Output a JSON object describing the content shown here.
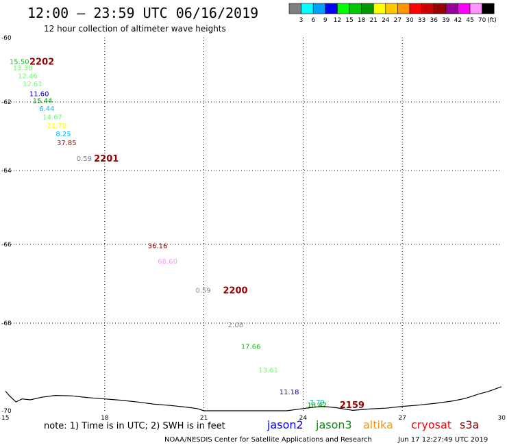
{
  "header": {
    "title": "12:00 – 23:59 UTC 06/16/2019",
    "subtitle": "12 hour collection of altimeter wave heights"
  },
  "legend": {
    "unit": "(ft)",
    "bins": [
      {
        "label": "",
        "color": "#808080"
      },
      {
        "label": "3",
        "color": "#00ffff"
      },
      {
        "label": "6",
        "color": "#00a0ff"
      },
      {
        "label": "9",
        "color": "#0000ff"
      },
      {
        "label": "12",
        "color": "#00ff00"
      },
      {
        "label": "15",
        "color": "#00c800"
      },
      {
        "label": "18",
        "color": "#009600"
      },
      {
        "label": "21",
        "color": "#ffff00"
      },
      {
        "label": "24",
        "color": "#ffc800"
      },
      {
        "label": "27",
        "color": "#ff9600"
      },
      {
        "label": "30",
        "color": "#ff0000"
      },
      {
        "label": "33",
        "color": "#c80000"
      },
      {
        "label": "36",
        "color": "#960000"
      },
      {
        "label": "39",
        "color": "#960096"
      },
      {
        "label": "42",
        "color": "#ff00ff"
      },
      {
        "label": "45",
        "color": "#ff96ff"
      },
      {
        "label": "70",
        "color": "#000000"
      }
    ]
  },
  "axes": {
    "lon_ticks": [
      "15",
      "18",
      "21",
      "24",
      "27",
      "30"
    ],
    "lat_ticks": [
      "-60",
      "-62",
      "-64",
      "-66",
      "-68",
      "-70"
    ]
  },
  "observations": [
    {
      "value": "15.50",
      "color": "#00c800",
      "lon": 15.42,
      "lat": -60.73
    },
    {
      "value": "13.38",
      "color": "#64ff64",
      "lon": 15.52,
      "lat": -60.93
    },
    {
      "value": "12.46",
      "color": "#64ff64",
      "lon": 15.67,
      "lat": -61.18
    },
    {
      "value": "12.61",
      "color": "#64ff64",
      "lon": 15.82,
      "lat": -61.43
    },
    {
      "value": "11.60",
      "color": "#0000c8",
      "lon": 16.02,
      "lat": -61.73
    },
    {
      "value": "15.44",
      "color": "#009600",
      "lon": 16.12,
      "lat": -61.95
    },
    {
      "value": "6.44",
      "color": "#00b4ff",
      "lon": 16.25,
      "lat": -62.18
    },
    {
      "value": "14.67",
      "color": "#64ff64",
      "lon": 16.42,
      "lat": -62.43
    },
    {
      "value": "21.70",
      "color": "#ffff00",
      "lon": 16.55,
      "lat": -62.68
    },
    {
      "value": "8.25",
      "color": "#00b4ff",
      "lon": 16.75,
      "lat": -62.92
    },
    {
      "value": "37.85",
      "color": "#960000",
      "lon": 16.85,
      "lat": -63.18
    },
    {
      "value": "0.59",
      "color": "#808080",
      "lon": 17.38,
      "lat": -63.64
    },
    {
      "value": "36.16",
      "color": "#960000",
      "lon": 19.6,
      "lat": -66.03
    },
    {
      "value": "68.60",
      "color": "#ff96ff",
      "lon": 19.9,
      "lat": -66.42
    },
    {
      "value": "0.59",
      "color": "#808080",
      "lon": 20.98,
      "lat": -67.16
    },
    {
      "value": "2.08",
      "color": "#808080",
      "lon": 21.96,
      "lat": -68.03
    },
    {
      "value": "17.66",
      "color": "#00c800",
      "lon": 22.42,
      "lat": -68.52
    },
    {
      "value": "13.61",
      "color": "#64ff64",
      "lon": 22.95,
      "lat": -69.06
    },
    {
      "value": "11.18",
      "color": "#0000c8",
      "lon": 23.58,
      "lat": -69.56
    },
    {
      "value": "7.79",
      "color": "#00b4b4",
      "lon": 24.42,
      "lat": -69.8
    },
    {
      "value": "18.42",
      "color": "#009600",
      "lon": 24.42,
      "lat": -69.86
    }
  ],
  "time_labels": [
    {
      "label": "2202",
      "lon": 16.1,
      "lat": -60.73
    },
    {
      "label": "2201",
      "lon": 18.05,
      "lat": -63.64
    },
    {
      "label": "2200",
      "lon": 21.95,
      "lat": -67.16
    },
    {
      "label": "2159",
      "lon": 25.48,
      "lat": -69.86
    }
  ],
  "coastline": [
    [
      15.0,
      -69.55
    ],
    [
      15.12,
      -69.66
    ],
    [
      15.32,
      -69.8
    ],
    [
      15.5,
      -69.73
    ],
    [
      15.75,
      -69.75
    ],
    [
      16.1,
      -69.69
    ],
    [
      16.5,
      -69.65
    ],
    [
      17.0,
      -69.66
    ],
    [
      17.5,
      -69.7
    ],
    [
      18.0,
      -69.73
    ],
    [
      18.5,
      -69.76
    ],
    [
      19.0,
      -69.8
    ],
    [
      19.5,
      -69.85
    ],
    [
      20.0,
      -69.88
    ],
    [
      20.5,
      -69.92
    ],
    [
      20.8,
      -69.95
    ],
    [
      21.0,
      -70.0
    ],
    [
      22.5,
      -70.0
    ],
    [
      23.0,
      -70.0
    ],
    [
      23.5,
      -70.0
    ],
    [
      24.0,
      -69.95
    ],
    [
      24.3,
      -69.92
    ],
    [
      24.6,
      -69.9
    ],
    [
      25.0,
      -69.93
    ],
    [
      25.5,
      -69.99
    ],
    [
      26.0,
      -69.96
    ],
    [
      26.5,
      -69.94
    ],
    [
      27.0,
      -69.9
    ],
    [
      27.5,
      -69.87
    ],
    [
      28.0,
      -69.83
    ],
    [
      28.5,
      -69.78
    ],
    [
      28.9,
      -69.72
    ],
    [
      29.3,
      -69.62
    ],
    [
      29.6,
      -69.56
    ],
    [
      30.0,
      -69.45
    ]
  ],
  "satellites": [
    {
      "name": "jason2",
      "color": "#0000ff"
    },
    {
      "name": "jason3",
      "color": "#009600"
    },
    {
      "name": "altika",
      "color": "#ff9600"
    },
    {
      "name": "cryosat",
      "color": "#ff0000"
    },
    {
      "name": "s3a",
      "color": "#960000"
    }
  ],
  "footer": {
    "note": "note: 1) Time is in UTC; 2) SWH is in feet",
    "credit": "NOAA/NESDIS Center for Satellite Applications and Research",
    "generated": "Jun 17 12:27:49 UTC 2019"
  }
}
